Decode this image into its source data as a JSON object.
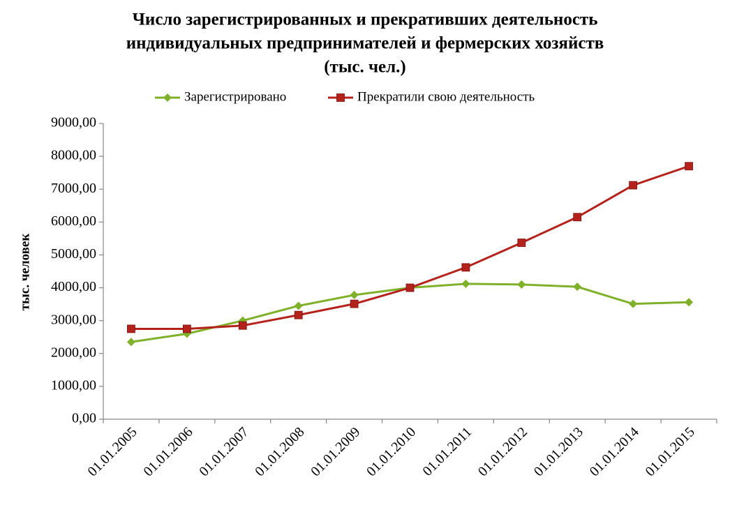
{
  "chart_data": {
    "type": "line",
    "title": [
      "Число зарегистрированных  и прекративших деятельность",
      "индивидуальных предпринимателей и фермерских хозяйств",
      "(тыс. чел.)"
    ],
    "y_label": "тыс. человек",
    "categories": [
      "01.01.2005",
      "01.01.2006",
      "01.01.2007",
      "01.01.2008",
      "01.01.2009",
      "01.01.2010",
      "01.01.2011",
      "01.01.2012",
      "01.01.2013",
      "01.01.2014",
      "01.01.2015"
    ],
    "series": [
      {
        "name": "Зарегистрировано",
        "color": "#7fb02a",
        "marker": "diamond",
        "values": [
          2350,
          2600,
          3000,
          3450,
          3780,
          4000,
          4120,
          4100,
          4030,
          3510,
          3560
        ]
      },
      {
        "name": "Прекратили свою деятельность",
        "color": "#b3221b",
        "marker": "square",
        "values": [
          2750,
          2750,
          2850,
          3170,
          3510,
          4000,
          4620,
          5370,
          6150,
          7120,
          7700
        ]
      }
    ],
    "ylim": [
      0,
      9000
    ],
    "yticks": [
      {
        "value": 0,
        "label": "0,00"
      },
      {
        "value": 1000,
        "label": "1000,00"
      },
      {
        "value": 2000,
        "label": "2000,00"
      },
      {
        "value": 3000,
        "label": "3000,00"
      },
      {
        "value": 4000,
        "label": "4000,00"
      },
      {
        "value": 5000,
        "label": "5000,00"
      },
      {
        "value": 6000,
        "label": "6000,00"
      },
      {
        "value": 7000,
        "label": "7000,00"
      },
      {
        "value": 8000,
        "label": "8000,00"
      },
      {
        "value": 9000,
        "label": "9000,00"
      }
    ],
    "legend": "top",
    "grid": false
  }
}
